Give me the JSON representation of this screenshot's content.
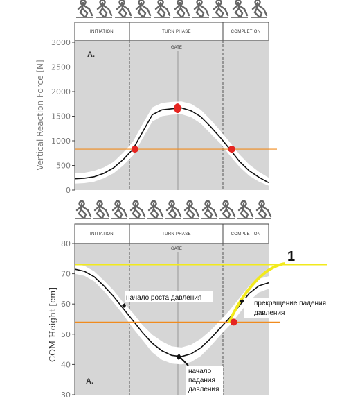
{
  "chart_data": [
    {
      "type": "line",
      "panel_label": "A.",
      "ylabel": "Vertical Reaction Force  [N]",
      "ylim": [
        0,
        3000
      ],
      "yticks": [
        0,
        500,
        1000,
        1500,
        2000,
        2500,
        3000
      ],
      "phases": [
        "INITIATION",
        "TURN PHASE",
        "COMPLETION"
      ],
      "gate_label": "GATE",
      "x": [
        0,
        0.05,
        0.1,
        0.15,
        0.2,
        0.25,
        0.3,
        0.35,
        0.4,
        0.45,
        0.5,
        0.55,
        0.6,
        0.65,
        0.7,
        0.75,
        0.8,
        0.85,
        0.9,
        0.95,
        1.0
      ],
      "series": [
        {
          "values": [
            230,
            240,
            270,
            340,
            450,
            620,
            830,
            1180,
            1530,
            1630,
            1650,
            1670,
            1610,
            1490,
            1290,
            1070,
            830,
            580,
            390,
            260,
            150
          ]
        }
      ],
      "band": {
        "lower": [
          130,
          140,
          170,
          240,
          340,
          500,
          700,
          1050,
          1390,
          1500,
          1530,
          1540,
          1480,
          1350,
          1150,
          950,
          700,
          470,
          290,
          170,
          90
        ],
        "upper": [
          340,
          350,
          390,
          460,
          570,
          760,
          980,
          1340,
          1680,
          1770,
          1790,
          1800,
          1750,
          1630,
          1430,
          1210,
          970,
          720,
          520,
          370,
          250
        ]
      },
      "reference_line": 830,
      "highlight_points": [
        {
          "x": 0.31,
          "y": 830
        },
        {
          "x": 0.53,
          "y": 1660
        },
        {
          "x": 0.81,
          "y": 830
        }
      ]
    },
    {
      "type": "line",
      "panel_label": "A.",
      "ylabel": "COM Height  [cm]",
      "ylim": [
        30,
        80
      ],
      "yticks": [
        30,
        40,
        50,
        60,
        70,
        80
      ],
      "phases": [
        "INITIATION",
        "TURN PHASE",
        "COMPLETION"
      ],
      "gate_label": "GATE",
      "x": [
        0,
        0.05,
        0.1,
        0.15,
        0.2,
        0.25,
        0.3,
        0.35,
        0.4,
        0.45,
        0.5,
        0.55,
        0.6,
        0.65,
        0.7,
        0.75,
        0.8,
        0.85,
        0.9,
        0.95,
        1.0
      ],
      "series": [
        {
          "values": [
            71.5,
            70.8,
            69,
            66,
            62.5,
            58.5,
            54.5,
            50.5,
            47,
            44.5,
            43,
            42.6,
            43.5,
            45.5,
            48.5,
            52,
            55.5,
            59.5,
            63.5,
            66,
            67
          ]
        }
      ],
      "band": {
        "lower": [
          70,
          69.3,
          67.5,
          64.3,
          60.5,
          56.5,
          52,
          48,
          44,
          41.5,
          40.3,
          40,
          40.8,
          42.8,
          46,
          49.6,
          53,
          57,
          61,
          63.8,
          65
        ],
        "upper": [
          73.2,
          72.6,
          70.8,
          67.8,
          64.5,
          60.5,
          57,
          53,
          49.8,
          47.6,
          46,
          45.6,
          46.5,
          48.5,
          51.2,
          54.5,
          58,
          62,
          66,
          68.3,
          69.2
        ]
      },
      "reference_lines": [
        {
          "y": 73,
          "color": "#f2ea1c"
        },
        {
          "y": 54,
          "color": "#f08b1e"
        }
      ],
      "highlight_points": [
        {
          "x": 0.82,
          "y": 54
        }
      ],
      "annotations": [
        {
          "text": "начало роста давления",
          "x": 0.25,
          "y": 60
        },
        {
          "text": "начало",
          "x": 0.52,
          "y": 42.5
        },
        {
          "text": "падания",
          "x": 0.52,
          "y": 42.5
        },
        {
          "text": "давления",
          "x": 0.52,
          "y": 42.5
        },
        {
          "text": "прекращение падения",
          "x": 0.87,
          "y": 61
        },
        {
          "text": "давления",
          "x": 0.87,
          "y": 61
        }
      ],
      "marker_label": "1"
    }
  ],
  "colors": {
    "panel_bg": "#d6d6d6",
    "band": "#ffffff",
    "line": "#111111",
    "point": "#e52521",
    "orange_line": "#f08b1e",
    "yellow_line": "#f2ea1c"
  }
}
